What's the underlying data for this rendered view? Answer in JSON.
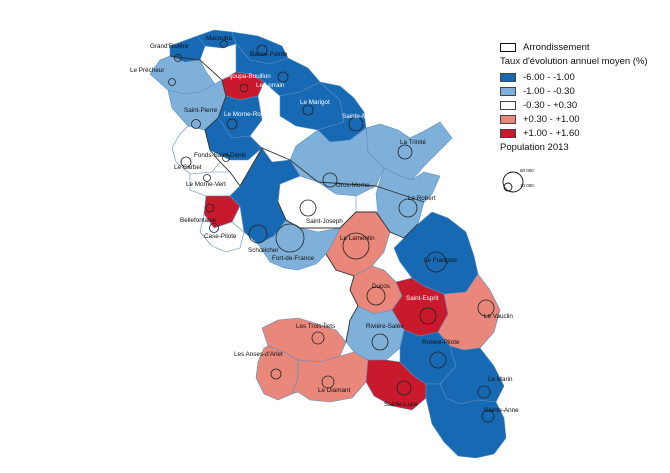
{
  "legend": {
    "boundary_label": "Arrondissement",
    "rate_title": "Taux d'évolution annuel moyen (%)",
    "classes": [
      {
        "label": "-6.00 - -1.00",
        "color": "#1769b3"
      },
      {
        "label": "-1.00 - -0.30",
        "color": "#7fb0d9"
      },
      {
        "label": "-0.30 - +0.30",
        "color": "#ffffff"
      },
      {
        "label": "+0.30 - +1.00",
        "color": "#e9877a"
      },
      {
        "label": "+1.00 - +1.60",
        "color": "#c91a2d"
      }
    ],
    "population_title": "Population 2013",
    "population_values": [
      "60 000",
      "10 000"
    ]
  },
  "communes": [
    {
      "name": "Macouba",
      "class": 0
    },
    {
      "name": "Grand'Rivière",
      "class": 0
    },
    {
      "name": "Basse-Pointe",
      "class": 0
    },
    {
      "name": "Le Prêcheur",
      "class": 1
    },
    {
      "name": "L'Ajoupa-Bouillon",
      "class": 4
    },
    {
      "name": "Le Lorrain",
      "class": 0
    },
    {
      "name": "Saint-Pierre",
      "class": 1
    },
    {
      "name": "Le Morne-Rouge",
      "class": 0
    },
    {
      "name": "Le Marigot",
      "class": 0
    },
    {
      "name": "Sainte-Marie",
      "class": 0
    },
    {
      "name": "La Trinité",
      "class": 1
    },
    {
      "name": "Fonds-Saint-Denis",
      "class": 0
    },
    {
      "name": "Le Carbet",
      "class": 2
    },
    {
      "name": "Le Morne-Vert",
      "class": 2
    },
    {
      "name": "Gros-Morne",
      "class": 1
    },
    {
      "name": "Le Robert",
      "class": 1
    },
    {
      "name": "Bellefontaine",
      "class": 4
    },
    {
      "name": "Saint-Joseph",
      "class": 2
    },
    {
      "name": "Case-Pilote",
      "class": 2
    },
    {
      "name": "Schœlcher",
      "class": 0
    },
    {
      "name": "Le Lamentin",
      "class": 3
    },
    {
      "name": "Fort-de-France",
      "class": 1
    },
    {
      "name": "Le François",
      "class": 0
    },
    {
      "name": "Ducos",
      "class": 3
    },
    {
      "name": "Saint-Esprit",
      "class": 4
    },
    {
      "name": "Le Vauclin",
      "class": 3
    },
    {
      "name": "Les Trois-Îlets",
      "class": 3
    },
    {
      "name": "Rivière-Salée",
      "class": 1
    },
    {
      "name": "Rivière-Pilote",
      "class": 0
    },
    {
      "name": "Les Anses-d'Arlet",
      "class": 3
    },
    {
      "name": "Le Diamant",
      "class": 3
    },
    {
      "name": "Sainte-Luce",
      "class": 4
    },
    {
      "name": "Le Marin",
      "class": 0
    },
    {
      "name": "Sainte-Anne",
      "class": 0
    }
  ]
}
